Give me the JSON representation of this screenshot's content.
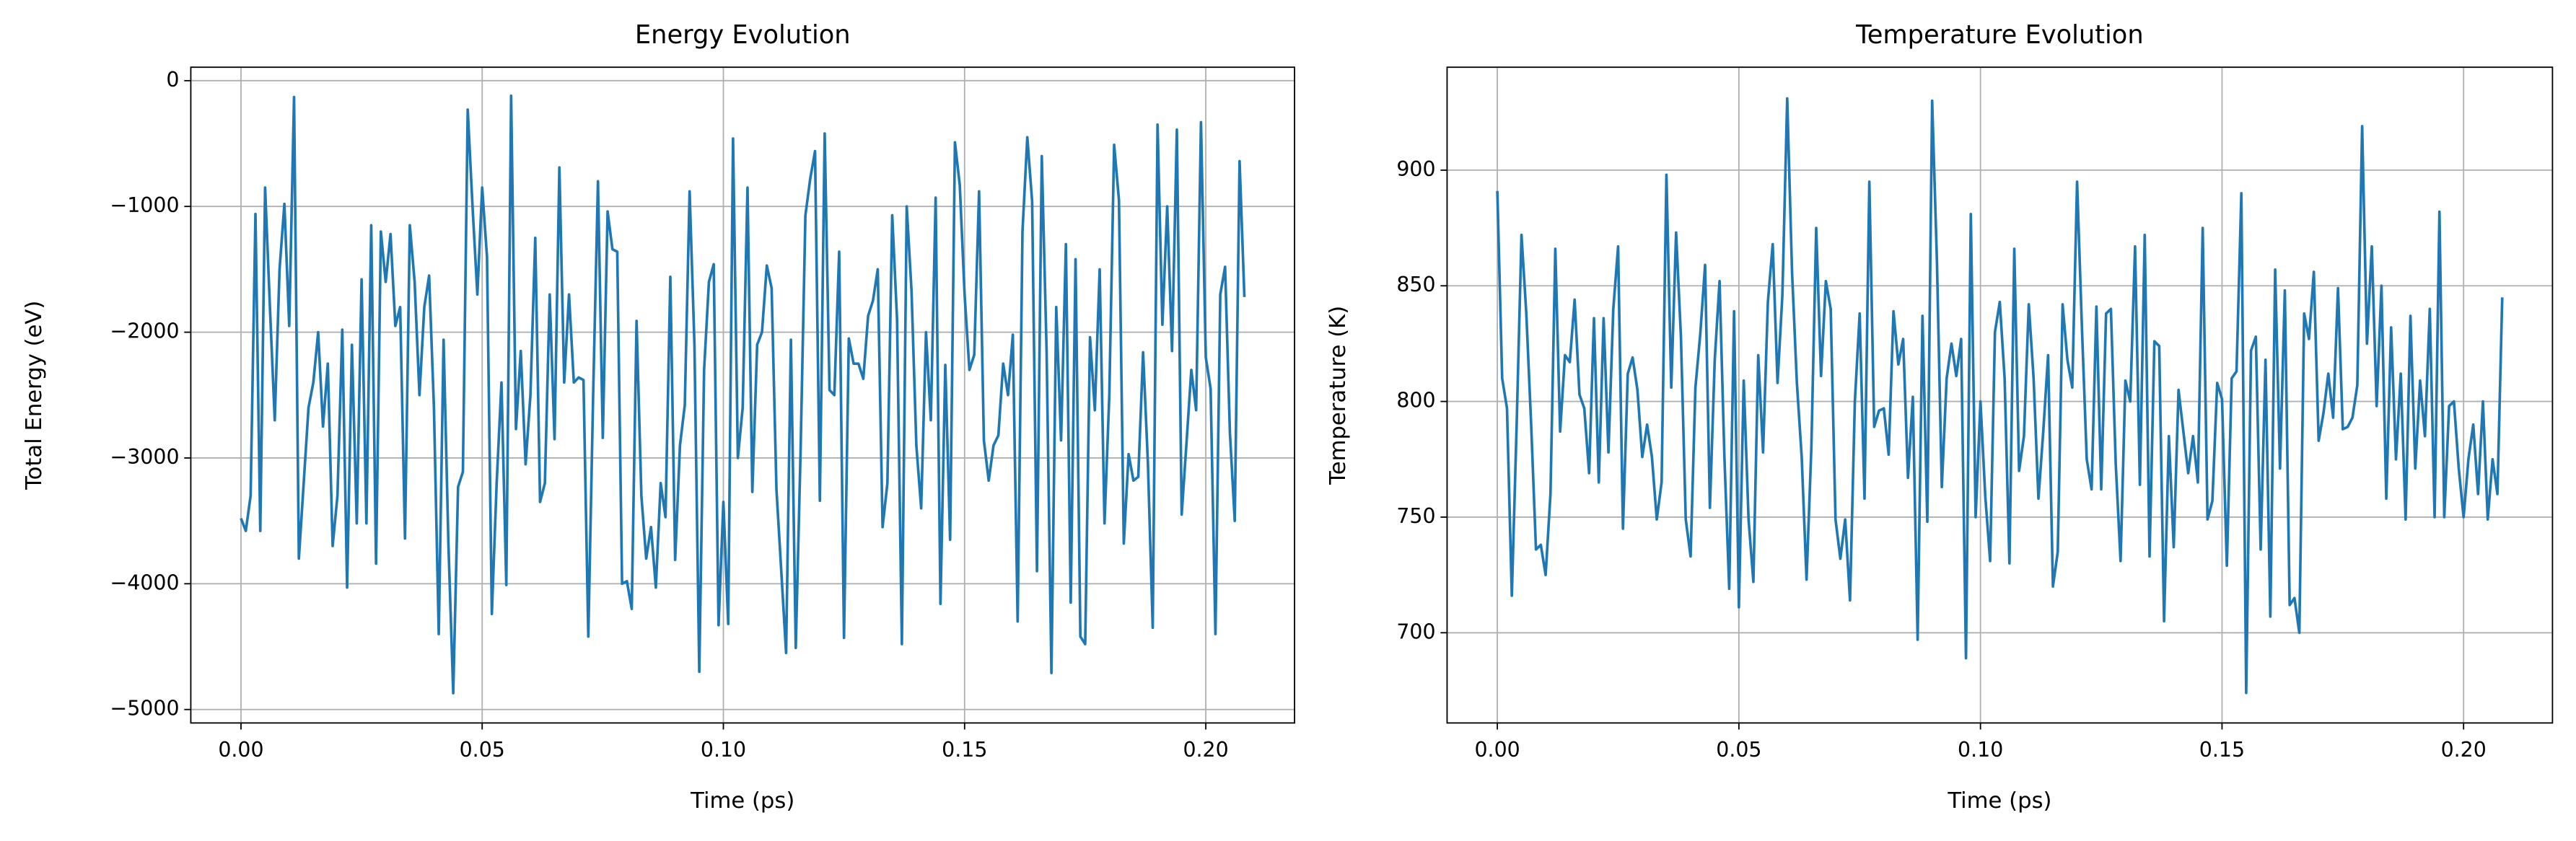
{
  "chart_data": [
    {
      "type": "line",
      "title": "Energy Evolution",
      "xlabel": "Time (ps)",
      "ylabel": "Total Energy (eV)",
      "grid": true,
      "xlim": [
        -0.0104,
        0.2184
      ],
      "ylim": [
        -5107,
        107
      ],
      "xticks": [
        {
          "value": 0,
          "label": "0.00"
        },
        {
          "value": 0.05,
          "label": "0.05"
        },
        {
          "value": 0.1,
          "label": "0.10"
        },
        {
          "value": 0.15,
          "label": "0.15"
        },
        {
          "value": 0.2,
          "label": "0.20"
        }
      ],
      "yticks": [
        {
          "value": -5000,
          "label": "−5000"
        },
        {
          "value": -4000,
          "label": "−4000"
        },
        {
          "value": -3000,
          "label": "−3000"
        },
        {
          "value": -2000,
          "label": "−2000"
        },
        {
          "value": -1000,
          "label": "−1000"
        },
        0
      ],
      "x": [
        0,
        0.001,
        0.002,
        0.003,
        0.004,
        0.005,
        0.006,
        0.007,
        0.008,
        0.009,
        0.01,
        0.011,
        0.012,
        0.013,
        0.014,
        0.015,
        0.016,
        0.017,
        0.018,
        0.019,
        0.02,
        0.021,
        0.022,
        0.023,
        0.024,
        0.025,
        0.026,
        0.027,
        0.028,
        0.029,
        0.03,
        0.031,
        0.032,
        0.033,
        0.034,
        0.035,
        0.036,
        0.037,
        0.038,
        0.039,
        0.04,
        0.041,
        0.042,
        0.043,
        0.044,
        0.045,
        0.046,
        0.047,
        0.048,
        0.049,
        0.05,
        0.051,
        0.052,
        0.053,
        0.054,
        0.055,
        0.056,
        0.057,
        0.058,
        0.059,
        0.06,
        0.061,
        0.062,
        0.063,
        0.064,
        0.065,
        0.066,
        0.067,
        0.068,
        0.069,
        0.07,
        0.071,
        0.072,
        0.073,
        0.074,
        0.075,
        0.076,
        0.077,
        0.078,
        0.079,
        0.08,
        0.081,
        0.082,
        0.083,
        0.084,
        0.085,
        0.086,
        0.087,
        0.088,
        0.089,
        0.09,
        0.091,
        0.092,
        0.093,
        0.094,
        0.095,
        0.096,
        0.097,
        0.098,
        0.099,
        0.1,
        0.101,
        0.102,
        0.103,
        0.104,
        0.105,
        0.106,
        0.107,
        0.108,
        0.109,
        0.11,
        0.111,
        0.112,
        0.113,
        0.114,
        0.115,
        0.116,
        0.117,
        0.118,
        0.119,
        0.12,
        0.121,
        0.122,
        0.123,
        0.124,
        0.125,
        0.126,
        0.127,
        0.128,
        0.129,
        0.13,
        0.131,
        0.132,
        0.133,
        0.134,
        0.135,
        0.136,
        0.137,
        0.138,
        0.139,
        0.14,
        0.141,
        0.142,
        0.143,
        0.144,
        0.145,
        0.146,
        0.147,
        0.148,
        0.149,
        0.15,
        0.151,
        0.152,
        0.153,
        0.154,
        0.155,
        0.156,
        0.157,
        0.158,
        0.159,
        0.16,
        0.161,
        0.162,
        0.163,
        0.164,
        0.165,
        0.166,
        0.167,
        0.168,
        0.169,
        0.17,
        0.171,
        0.172,
        0.173,
        0.174,
        0.175,
        0.176,
        0.177,
        0.178,
        0.179,
        0.18,
        0.181,
        0.182,
        0.183,
        0.184,
        0.185,
        0.186,
        0.187,
        0.188,
        0.189,
        0.19,
        0.191,
        0.192,
        0.193,
        0.194,
        0.195,
        0.196,
        0.197,
        0.198,
        0.199,
        0.2,
        0.201,
        0.202,
        0.203,
        0.204,
        0.205,
        0.206,
        0.207,
        0.208
      ],
      "series": [
        {
          "color": "#1f77b4",
          "values": [
            -3480,
            -3580,
            -3300,
            -1060,
            -3580,
            -850,
            -1800,
            -2700,
            -1500,
            -980,
            -1950,
            -130,
            -3800,
            -3200,
            -2600,
            -2400,
            -2000,
            -2750,
            -2250,
            -3700,
            -3300,
            -1980,
            -4030,
            -2100,
            -3520,
            -1580,
            -3520,
            -1150,
            -3840,
            -1200,
            -1600,
            -1220,
            -1950,
            -1800,
            -3640,
            -1150,
            -1600,
            -2500,
            -1800,
            -1550,
            -2600,
            -4400,
            -2060,
            -3680,
            -4870,
            -3230,
            -3110,
            -230,
            -1000,
            -1700,
            -850,
            -1400,
            -4240,
            -3200,
            -2400,
            -4010,
            -120,
            -2770,
            -2150,
            -3050,
            -2500,
            -1250,
            -3350,
            -3200,
            -1700,
            -2850,
            -690,
            -2400,
            -1700,
            -2400,
            -2360,
            -2380,
            -4420,
            -2500,
            -800,
            -2840,
            -1040,
            -1340,
            -1360,
            -4000,
            -3980,
            -4200,
            -1910,
            -3300,
            -3800,
            -3550,
            -4030,
            -3200,
            -3470,
            -1560,
            -3810,
            -2900,
            -2580,
            -880,
            -2100,
            -4700,
            -2300,
            -1600,
            -1460,
            -4330,
            -3350,
            -4320,
            -460,
            -3000,
            -2600,
            -850,
            -3270,
            -2100,
            -2000,
            -1470,
            -1650,
            -3250,
            -3900,
            -4550,
            -2060,
            -4510,
            -2950,
            -1070,
            -780,
            -560,
            -3340,
            -420,
            -2460,
            -2500,
            -1360,
            -4430,
            -2050,
            -2250,
            -2250,
            -2370,
            -1870,
            -1750,
            -1500,
            -3550,
            -3200,
            -1070,
            -1900,
            -4480,
            -1000,
            -1670,
            -2900,
            -3400,
            -2000,
            -2700,
            -930,
            -4160,
            -2260,
            -3650,
            -490,
            -830,
            -1700,
            -2300,
            -2180,
            -880,
            -2860,
            -3180,
            -2900,
            -2820,
            -2250,
            -2500,
            -2020,
            -4300,
            -1200,
            -450,
            -960,
            -3900,
            -600,
            -2150,
            -4710,
            -1800,
            -2860,
            -1300,
            -4150,
            -1420,
            -4420,
            -4480,
            -2040,
            -2620,
            -1500,
            -3520,
            -2500,
            -510,
            -950,
            -3680,
            -2970,
            -3180,
            -3150,
            -2160,
            -3040,
            -4350,
            -350,
            -1940,
            -1000,
            -2150,
            -390,
            -3450,
            -2880,
            -2300,
            -2620,
            -330,
            -2200,
            -2450,
            -4400,
            -1700,
            -1480,
            -2800,
            -3500,
            -640,
            -1720
          ]
        }
      ]
    },
    {
      "type": "line",
      "title": "Temperature Evolution",
      "xlabel": "Time (ps)",
      "ylabel": "Temperature (K)",
      "grid": true,
      "xlim": [
        -0.0104,
        0.2184
      ],
      "ylim": [
        661,
        944.5
      ],
      "xticks": [
        {
          "value": 0,
          "label": "0.00"
        },
        {
          "value": 0.05,
          "label": "0.05"
        },
        {
          "value": 0.1,
          "label": "0.10"
        },
        {
          "value": 0.15,
          "label": "0.15"
        },
        {
          "value": 0.2,
          "label": "0.20"
        }
      ],
      "yticks": [
        700,
        750,
        800,
        850,
        900
      ],
      "x": [
        0,
        0.001,
        0.002,
        0.003,
        0.004,
        0.005,
        0.006,
        0.007,
        0.008,
        0.009,
        0.01,
        0.011,
        0.012,
        0.013,
        0.014,
        0.015,
        0.016,
        0.017,
        0.018,
        0.019,
        0.02,
        0.021,
        0.022,
        0.023,
        0.024,
        0.025,
        0.026,
        0.027,
        0.028,
        0.029,
        0.03,
        0.031,
        0.032,
        0.033,
        0.034,
        0.035,
        0.036,
        0.037,
        0.038,
        0.039,
        0.04,
        0.041,
        0.042,
        0.043,
        0.044,
        0.045,
        0.046,
        0.047,
        0.048,
        0.049,
        0.05,
        0.051,
        0.052,
        0.053,
        0.054,
        0.055,
        0.056,
        0.057,
        0.058,
        0.059,
        0.06,
        0.061,
        0.062,
        0.063,
        0.064,
        0.065,
        0.066,
        0.067,
        0.068,
        0.069,
        0.07,
        0.071,
        0.072,
        0.073,
        0.074,
        0.075,
        0.076,
        0.077,
        0.078,
        0.079,
        0.08,
        0.081,
        0.082,
        0.083,
        0.084,
        0.085,
        0.086,
        0.087,
        0.088,
        0.089,
        0.09,
        0.091,
        0.092,
        0.093,
        0.094,
        0.095,
        0.096,
        0.097,
        0.098,
        0.099,
        0.1,
        0.101,
        0.102,
        0.103,
        0.104,
        0.105,
        0.106,
        0.107,
        0.108,
        0.109,
        0.11,
        0.111,
        0.112,
        0.113,
        0.114,
        0.115,
        0.116,
        0.117,
        0.118,
        0.119,
        0.12,
        0.121,
        0.122,
        0.123,
        0.124,
        0.125,
        0.126,
        0.127,
        0.128,
        0.129,
        0.13,
        0.131,
        0.132,
        0.133,
        0.134,
        0.135,
        0.136,
        0.137,
        0.138,
        0.139,
        0.14,
        0.141,
        0.142,
        0.143,
        0.144,
        0.145,
        0.146,
        0.147,
        0.148,
        0.149,
        0.15,
        0.151,
        0.152,
        0.153,
        0.154,
        0.155,
        0.156,
        0.157,
        0.158,
        0.159,
        0.16,
        0.161,
        0.162,
        0.163,
        0.164,
        0.165,
        0.166,
        0.167,
        0.168,
        0.169,
        0.17,
        0.171,
        0.172,
        0.173,
        0.174,
        0.175,
        0.176,
        0.177,
        0.178,
        0.179,
        0.18,
        0.181,
        0.182,
        0.183,
        0.184,
        0.185,
        0.186,
        0.187,
        0.188,
        0.189,
        0.19,
        0.191,
        0.192,
        0.193,
        0.194,
        0.195,
        0.196,
        0.197,
        0.198,
        0.199,
        0.2,
        0.201,
        0.202,
        0.203,
        0.204,
        0.205,
        0.206,
        0.207,
        0.208
      ],
      "series": [
        {
          "color": "#1f77b4",
          "values": [
            891,
            810,
            797,
            716,
            790,
            872,
            838,
            790,
            736,
            738,
            725,
            760,
            866,
            787,
            820,
            817,
            844,
            803,
            797,
            769,
            836,
            765,
            836,
            778,
            840,
            867,
            745,
            812,
            819,
            805,
            776,
            790,
            776,
            749,
            765,
            898,
            806,
            873,
            828,
            749,
            733,
            806,
            829,
            859,
            754,
            818,
            852,
            776,
            719,
            839,
            711,
            809,
            749,
            722,
            820,
            778,
            843,
            868,
            808,
            846,
            931,
            856,
            808,
            776,
            723,
            780,
            875,
            811,
            852,
            840,
            749,
            732,
            749,
            714,
            800,
            838,
            758,
            895,
            789,
            796,
            797,
            777,
            839,
            816,
            827,
            767,
            802,
            697,
            837,
            748,
            930,
            860,
            763,
            810,
            825,
            811,
            827,
            689,
            881,
            750,
            800,
            759,
            731,
            830,
            843,
            810,
            730,
            866,
            770,
            785,
            842,
            810,
            758,
            787,
            820,
            720,
            735,
            842,
            818,
            806,
            895,
            832,
            775,
            762,
            841,
            762,
            838,
            840,
            773,
            731,
            809,
            800,
            867,
            764,
            872,
            733,
            826,
            824,
            705,
            785,
            737,
            805,
            787,
            769,
            785,
            765,
            875,
            749,
            757,
            808,
            801,
            729,
            810,
            813,
            890,
            674,
            822,
            828,
            736,
            818,
            707,
            857,
            771,
            848,
            712,
            715,
            700,
            838,
            827,
            856,
            783,
            795,
            812,
            793,
            849,
            788,
            789,
            793,
            807,
            919,
            825,
            867,
            798,
            850,
            758,
            832,
            775,
            812,
            749,
            837,
            771,
            809,
            785,
            840,
            750,
            882,
            750,
            798,
            800,
            771,
            750,
            775,
            790,
            760,
            800,
            749,
            775,
            760,
            845
          ]
        }
      ]
    }
  ]
}
